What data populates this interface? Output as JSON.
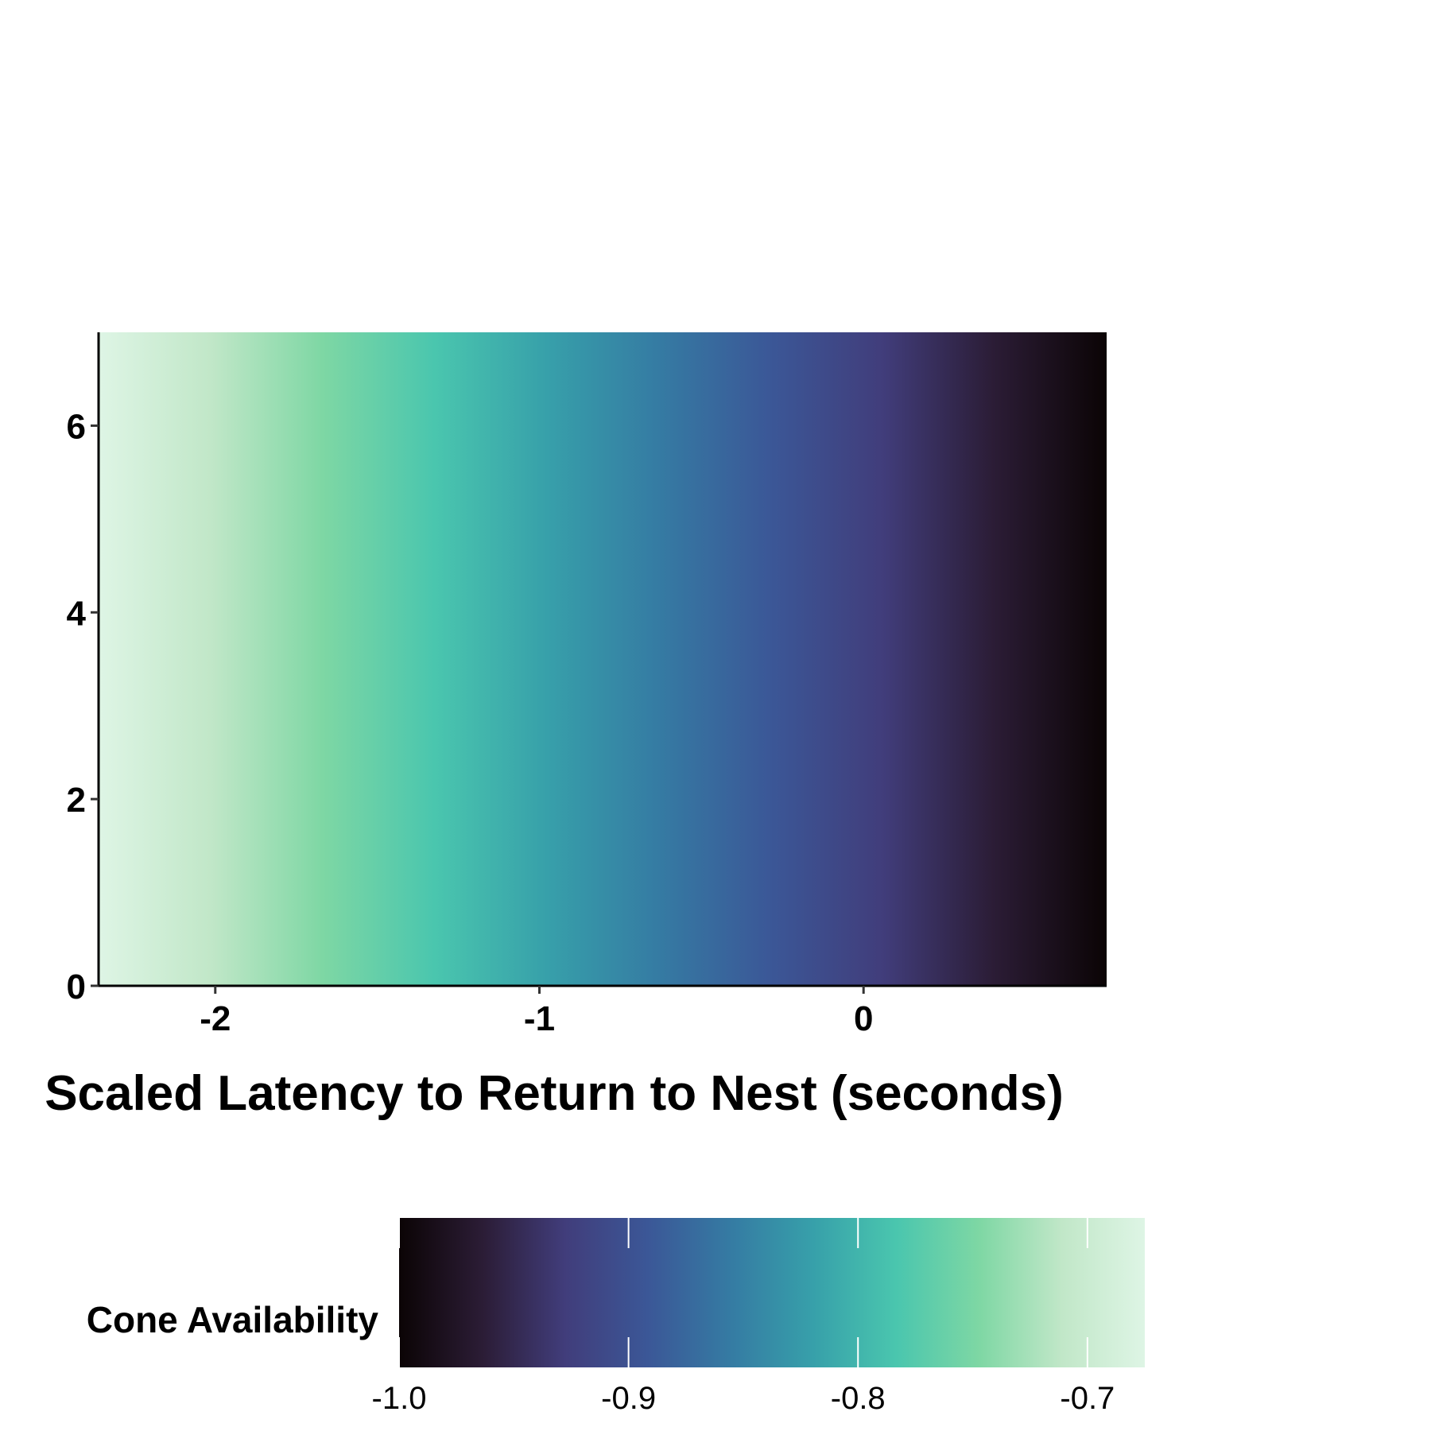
{
  "chart_data": {
    "type": "heatmap",
    "title": "",
    "xlabel": "Scaled Latency to Return to Nest (seconds)",
    "ylabel": "",
    "xlim": [
      -2.36,
      0.75
    ],
    "ylim": [
      0,
      7
    ],
    "x_ticks": [
      -2,
      -1,
      0
    ],
    "y_ticks": [
      0,
      2,
      4,
      6
    ],
    "x_tick_labels": [
      "-2",
      "-1",
      "0"
    ],
    "y_tick_labels": [
      "0",
      "2",
      "4",
      "6"
    ],
    "fill_variable": "Cone Availability",
    "fill_range": [
      -1.0,
      -0.675
    ],
    "fill_trend": "fill decreases with x; constant across y",
    "fill_by_x": [
      {
        "x": -2.36,
        "fill": -0.675
      },
      {
        "x": -2.0,
        "fill": -0.71
      },
      {
        "x": -1.5,
        "fill": -0.78
      },
      {
        "x": -1.0,
        "fill": -0.82
      },
      {
        "x": -0.5,
        "fill": -0.87
      },
      {
        "x": 0.0,
        "fill": -0.93
      },
      {
        "x": 0.75,
        "fill": -1.0
      }
    ],
    "grid": false,
    "legend": {
      "title": "Cone Availability",
      "placement": "bottom",
      "breaks": [
        -1.0,
        -0.9,
        -0.8,
        -0.7
      ],
      "labels": [
        "-1.0",
        "-0.9",
        "-0.8",
        "-0.7"
      ]
    },
    "colors": {
      "colormap": "mako",
      "stops": [
        "#0b0405",
        "#2b1c35",
        "#413d7b",
        "#3b5797",
        "#357ba3",
        "#37a0aa",
        "#4ac6ae",
        "#7ed7a4",
        "#c1e7c8",
        "#def5e5"
      ],
      "axis": "#000000",
      "tick_mark": "#333333"
    }
  }
}
